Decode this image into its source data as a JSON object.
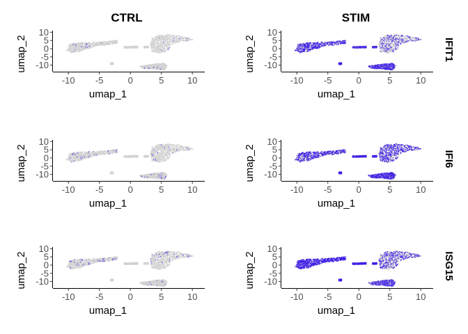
{
  "chart_data": {
    "type": "scatter",
    "column_titles": [
      "CTRL",
      "STIM"
    ],
    "row_labels": [
      "IFIT1",
      "IFI6",
      "ISG15"
    ],
    "xlabel": "umap_1",
    "ylabel": "umap_2",
    "xlim": [
      -12.5,
      12
    ],
    "ylim": [
      -14,
      11
    ],
    "xticks": [
      -10,
      -5,
      0,
      5,
      10
    ],
    "yticks": [
      10,
      5,
      0,
      -5,
      -10
    ],
    "grid": false,
    "colors": {
      "low": "#d3d3d3",
      "high": "#3d1fe8"
    },
    "clusters": [
      {
        "name": "",
        "poly": [
          [
            -10,
            0.5
          ],
          [
            -10,
            2.5
          ],
          [
            -9,
            3.5
          ],
          [
            -7,
            3.8
          ],
          [
            -5,
            4.2
          ],
          [
            -3,
            4.8
          ],
          [
            -2,
            5.2
          ],
          [
            -2.2,
            3.2
          ],
          [
            -4,
            2
          ],
          [
            -6,
            1
          ],
          [
            -8,
            -1.5
          ],
          [
            -9.5,
            -2.5
          ],
          [
            -10.4,
            -1.2
          ]
        ]
      },
      {
        "name": "",
        "poly": [
          [
            3.5,
            6.5
          ],
          [
            4.5,
            8.2
          ],
          [
            6,
            8.6
          ],
          [
            8,
            7.8
          ],
          [
            9.5,
            6.5
          ],
          [
            10.3,
            5.5
          ],
          [
            9,
            4.6
          ],
          [
            7.5,
            3.8
          ],
          [
            6.5,
            2
          ],
          [
            6.2,
            -0.5
          ],
          [
            5.5,
            -2
          ],
          [
            4.5,
            -2.8
          ],
          [
            3.5,
            -1.8
          ],
          [
            3.2,
            1.5
          ],
          [
            3.3,
            4
          ]
        ]
      },
      {
        "name": "",
        "poly": [
          [
            1.5,
            -10.6
          ],
          [
            4,
            -9.3
          ],
          [
            5.5,
            -8.8
          ],
          [
            6,
            -10.5
          ],
          [
            5.5,
            -13
          ],
          [
            4,
            -12.5
          ],
          [
            2,
            -12
          ]
        ]
      },
      {
        "name": "",
        "poly": [
          [
            -3.2,
            -8.7
          ],
          [
            -2.8,
            -8.6
          ],
          [
            -2.8,
            -9.6
          ],
          [
            -3.2,
            -9.6
          ]
        ]
      },
      {
        "name": "",
        "poly": [
          [
            -1,
            1.2
          ],
          [
            1.2,
            1.5
          ],
          [
            1.2,
            0.5
          ],
          [
            -1,
            0.4
          ]
        ]
      },
      {
        "name": "",
        "poly": [
          [
            2.2,
            1.3
          ],
          [
            2.9,
            1.4
          ],
          [
            2.9,
            0.6
          ],
          [
            2.2,
            0.5
          ]
        ]
      }
    ],
    "panels": [
      {
        "gene": "IFIT1",
        "condition": "CTRL",
        "expr": [
          0.02,
          0.01,
          0.01,
          0,
          0,
          0
        ]
      },
      {
        "gene": "IFIT1",
        "condition": "STIM",
        "expr": [
          0.65,
          0.3,
          0.55,
          0.6,
          0.4,
          0.4
        ]
      },
      {
        "gene": "IFI6",
        "condition": "CTRL",
        "expr": [
          0.04,
          0.02,
          0.02,
          0,
          0,
          0
        ]
      },
      {
        "gene": "IFI6",
        "condition": "STIM",
        "expr": [
          0.6,
          0.6,
          0.6,
          0.6,
          0.5,
          0.5
        ]
      },
      {
        "gene": "ISG15",
        "condition": "CTRL",
        "expr": [
          0.06,
          0.04,
          0.02,
          0,
          0,
          0
        ]
      },
      {
        "gene": "ISG15",
        "condition": "STIM",
        "expr": [
          0.92,
          0.45,
          0.45,
          0.7,
          0.6,
          0.6
        ]
      }
    ]
  }
}
